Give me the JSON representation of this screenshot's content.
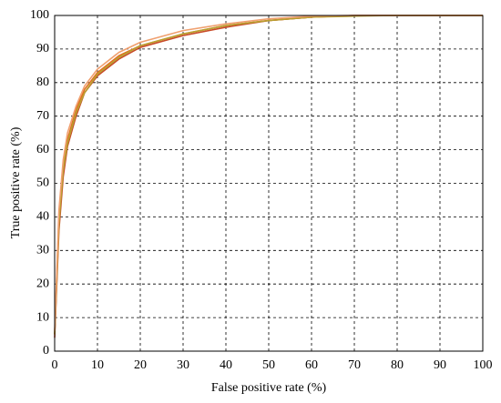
{
  "chart_data": {
    "type": "line",
    "x_label": "False positive rate (%)",
    "y_label": "True positive rate (%)",
    "x": [
      0,
      1,
      2,
      3,
      5,
      7,
      10,
      15,
      20,
      30,
      40,
      50,
      60,
      70,
      80,
      90,
      100
    ],
    "series": [
      {
        "color": "#e0701e",
        "values": [
          5,
          40,
          55,
          63,
          72,
          78,
          83,
          88,
          91,
          94.5,
          97,
          98.5,
          99.5,
          100,
          100,
          100,
          100
        ]
      },
      {
        "color": "#c84a28",
        "values": [
          4,
          36,
          52,
          61,
          70,
          77,
          82,
          87,
          90.5,
          94,
          96.5,
          98.5,
          99.5,
          100,
          100,
          100,
          100
        ]
      },
      {
        "color": "#b8a030",
        "values": [
          5,
          38,
          54,
          62,
          71,
          77,
          82.5,
          87.5,
          91,
          94.5,
          97,
          98.5,
          99.5,
          99.8,
          100,
          100,
          100
        ]
      },
      {
        "color": "#f0a070",
        "values": [
          6,
          42,
          57,
          65,
          73,
          79,
          84,
          89,
          92,
          95.5,
          97.5,
          99,
          99.8,
          100,
          100,
          100,
          100
        ]
      }
    ],
    "xlim": [
      0,
      100
    ],
    "ylim": [
      0,
      100
    ],
    "xticks": [
      0,
      10,
      20,
      30,
      40,
      50,
      60,
      70,
      80,
      90,
      100
    ],
    "yticks": [
      0,
      10,
      20,
      30,
      40,
      50,
      60,
      70,
      80,
      90,
      100
    ],
    "grid": true
  }
}
